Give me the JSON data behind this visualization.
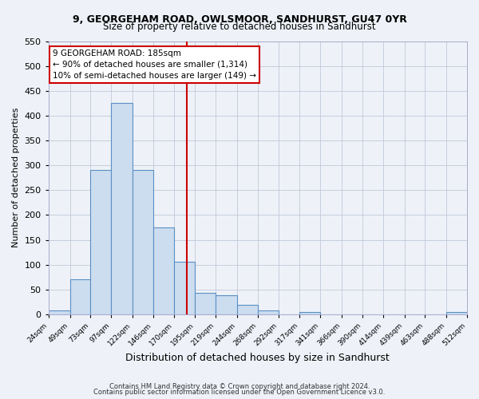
{
  "title1": "9, GEORGEHAM ROAD, OWLSMOOR, SANDHURST, GU47 0YR",
  "title2": "Size of property relative to detached houses in Sandhurst",
  "xlabel": "Distribution of detached houses by size in Sandhurst",
  "ylabel": "Number of detached properties",
  "bar_edges": [
    24,
    49,
    73,
    97,
    122,
    146,
    170,
    195,
    219,
    244,
    268,
    292,
    317,
    341,
    366,
    390,
    414,
    439,
    463,
    488,
    512
  ],
  "bar_heights": [
    8,
    70,
    291,
    425,
    290,
    175,
    106,
    43,
    38,
    19,
    8,
    0,
    5,
    0,
    0,
    0,
    0,
    0,
    0,
    4
  ],
  "bar_color": "#ccddf0",
  "bar_edge_color": "#5a8fc3",
  "tick_labels": [
    "24sqm",
    "49sqm",
    "73sqm",
    "97sqm",
    "122sqm",
    "146sqm",
    "170sqm",
    "195sqm",
    "219sqm",
    "244sqm",
    "268sqm",
    "292sqm",
    "317sqm",
    "341sqm",
    "366sqm",
    "390sqm",
    "414sqm",
    "439sqm",
    "463sqm",
    "488sqm",
    "512sqm"
  ],
  "ylim": [
    0,
    550
  ],
  "yticks": [
    0,
    50,
    100,
    150,
    200,
    250,
    300,
    350,
    400,
    450,
    500,
    550
  ],
  "property_line_x": 185,
  "annotation_title": "9 GEORGEHAM ROAD: 185sqm",
  "annotation_line1": "← 90% of detached houses are smaller (1,314)",
  "annotation_line2": "10% of semi-detached houses are larger (149) →",
  "annotation_box_color": "#ffffff",
  "annotation_box_edge": "#cc0000",
  "property_line_color": "#cc0000",
  "footer1": "Contains HM Land Registry data © Crown copyright and database right 2024.",
  "footer2": "Contains public sector information licensed under the Open Government Licence v3.0.",
  "bg_color": "#eef2f8",
  "grid_color": "#c0c8d8",
  "spine_color": "#aaaacc"
}
